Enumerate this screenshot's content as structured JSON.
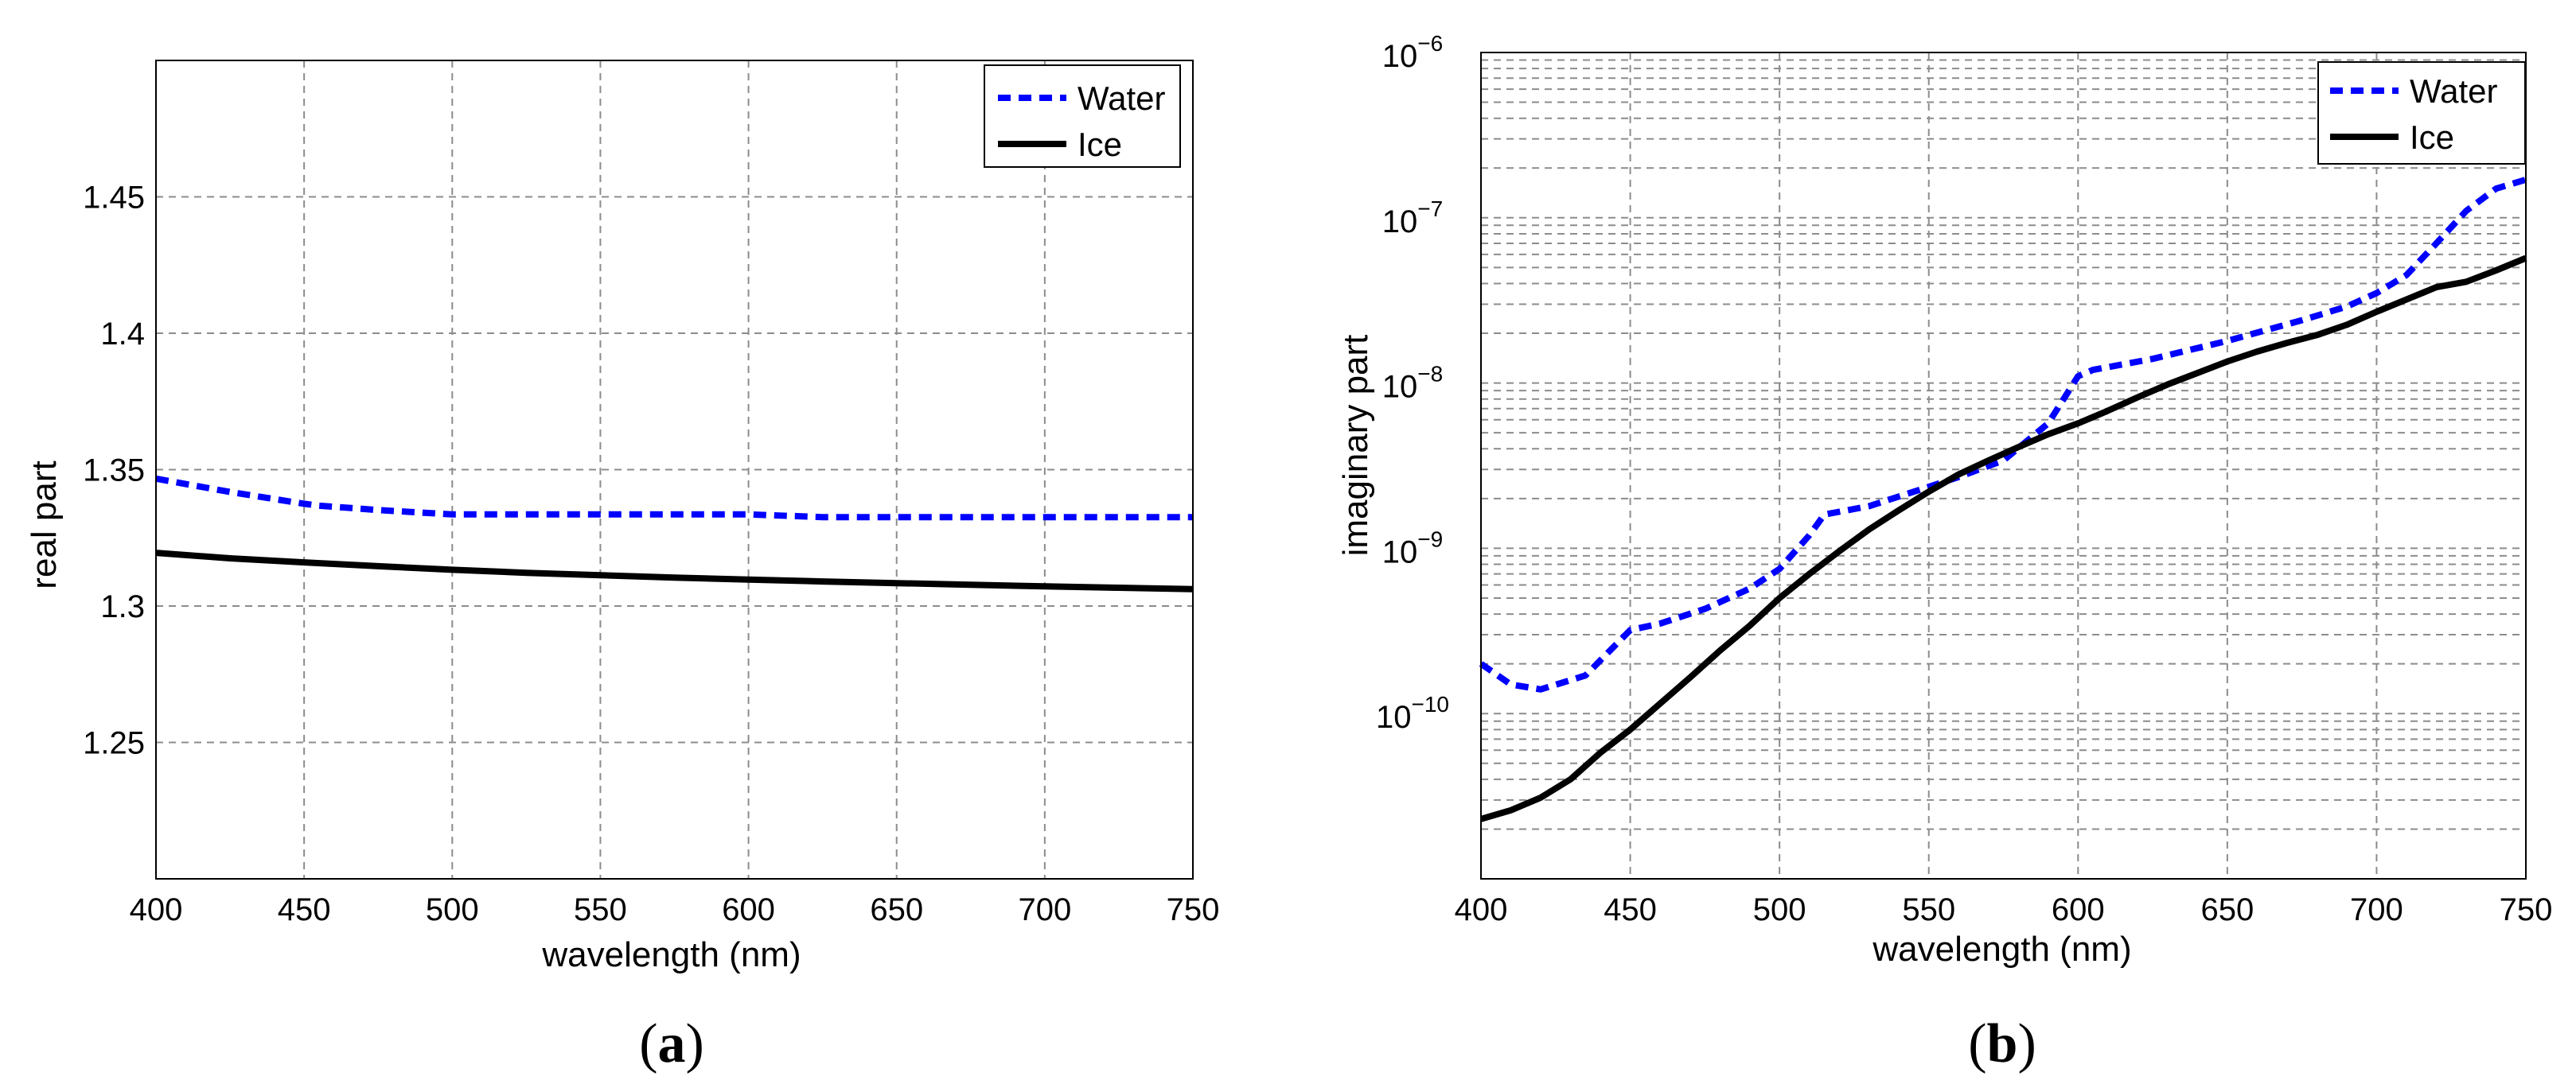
{
  "chart_data": [
    {
      "type": "line",
      "panel": "(a)",
      "panel_caption": {
        "open": "(",
        "letter": "a",
        "close": ")"
      },
      "xlabel": "wavelength (nm)",
      "ylabel": "real part",
      "xlim": [
        400,
        750
      ],
      "ylim": [
        1.2,
        1.5
      ],
      "yscale": "linear",
      "grid": true,
      "legend_location": "top-right",
      "x_ticks": [
        400,
        450,
        500,
        550,
        600,
        650,
        700,
        750
      ],
      "x_tick_labels": [
        "400",
        "450",
        "500",
        "550",
        "600",
        "650",
        "700",
        "750"
      ],
      "y_ticks": [
        1.25,
        1.3,
        1.35,
        1.4,
        1.45
      ],
      "y_tick_labels": [
        "1.25",
        "1.3",
        "1.35",
        "1.4",
        "1.45"
      ],
      "series": [
        {
          "name": "Water",
          "color": "#0000ff",
          "style": "dashed",
          "x": [
            400,
            425,
            450,
            455,
            475,
            500,
            525,
            550,
            575,
            600,
            625,
            650,
            675,
            700,
            725,
            750
          ],
          "y": [
            1.3467,
            1.3418,
            1.3375,
            1.3368,
            1.3352,
            1.3336,
            1.3336,
            1.3336,
            1.3336,
            1.3336,
            1.3326,
            1.3326,
            1.3326,
            1.3326,
            1.3326,
            1.3326
          ]
        },
        {
          "name": "Ice",
          "color": "#000000",
          "style": "solid",
          "x": [
            400,
            425,
            450,
            475,
            500,
            525,
            550,
            575,
            600,
            625,
            650,
            675,
            700,
            725,
            750
          ],
          "y": [
            1.3195,
            1.3175,
            1.316,
            1.3146,
            1.3133,
            1.3122,
            1.3113,
            1.3104,
            1.3097,
            1.309,
            1.3084,
            1.3078,
            1.3072,
            1.3067,
            1.3062
          ]
        }
      ]
    },
    {
      "type": "line",
      "panel": "(b)",
      "panel_caption": {
        "open": "(",
        "letter": "b",
        "close": ")"
      },
      "xlabel": "wavelength (nm)",
      "ylabel": "imaginary part",
      "xlim": [
        400,
        750
      ],
      "ylim": [
        1e-11,
        1e-06
      ],
      "yscale": "log",
      "grid": true,
      "legend_location": "top-right",
      "x_ticks": [
        400,
        450,
        500,
        550,
        600,
        650,
        700,
        750
      ],
      "x_tick_labels": [
        "400",
        "450",
        "500",
        "550",
        "600",
        "650",
        "700",
        "750"
      ],
      "y_ticks": [
        1e-10,
        1e-09,
        1e-08,
        1e-07,
        1e-06
      ],
      "y_tick_labels": [
        {
          "base": "10",
          "exp": "−10"
        },
        {
          "base": "10",
          "exp": "−9"
        },
        {
          "base": "10",
          "exp": "−8"
        },
        {
          "base": "10",
          "exp": "−7"
        },
        {
          "base": "10",
          "exp": "−6"
        }
      ],
      "series": [
        {
          "name": "Water",
          "color": "#0000ff",
          "style": "dashed",
          "x": [
            400,
            410,
            420,
            435,
            450,
            460,
            475,
            490,
            500,
            510,
            515,
            530,
            545,
            560,
            575,
            590,
            600,
            605,
            625,
            650,
            675,
            690,
            700,
            710,
            720,
            730,
            740,
            750
          ],
          "y": [
            2e-10,
            1.5e-10,
            1.4e-10,
            1.7e-10,
            3.2e-10,
            3.5e-10,
            4.3e-10,
            5.7e-10,
            7.5e-10,
            1.2e-09,
            1.6e-09,
            1.8e-09,
            2.2e-09,
            2.7e-09,
            3.4e-09,
            5.7e-09,
            1.1e-08,
            1.2e-08,
            1.4e-08,
            1.8e-08,
            2.4e-08,
            2.9e-08,
            3.5e-08,
            4.5e-08,
            7e-08,
            1.1e-07,
            1.5e-07,
            1.7e-07
          ]
        },
        {
          "name": "Ice",
          "color": "#000000",
          "style": "solid",
          "x": [
            400,
            410,
            420,
            430,
            440,
            450,
            460,
            470,
            480,
            490,
            500,
            510,
            520,
            530,
            540,
            550,
            560,
            570,
            580,
            590,
            600,
            610,
            620,
            630,
            640,
            650,
            660,
            670,
            680,
            690,
            700,
            710,
            720,
            730,
            740,
            750
          ],
          "y": [
            2.3e-11,
            2.6e-11,
            3.1e-11,
            4e-11,
            5.8e-11,
            8e-11,
            1.15e-10,
            1.65e-10,
            2.4e-10,
            3.4e-10,
            5e-10,
            7e-10,
            9.6e-10,
            1.3e-09,
            1.7e-09,
            2.2e-09,
            2.8e-09,
            3.4e-09,
            4.1e-09,
            4.9e-09,
            5.7e-09,
            6.8e-09,
            8.2e-09,
            9.8e-09,
            1.15e-08,
            1.35e-08,
            1.55e-08,
            1.75e-08,
            1.95e-08,
            2.25e-08,
            2.7e-08,
            3.2e-08,
            3.8e-08,
            4.1e-08,
            4.8e-08,
            5.7e-08
          ]
        }
      ]
    }
  ]
}
